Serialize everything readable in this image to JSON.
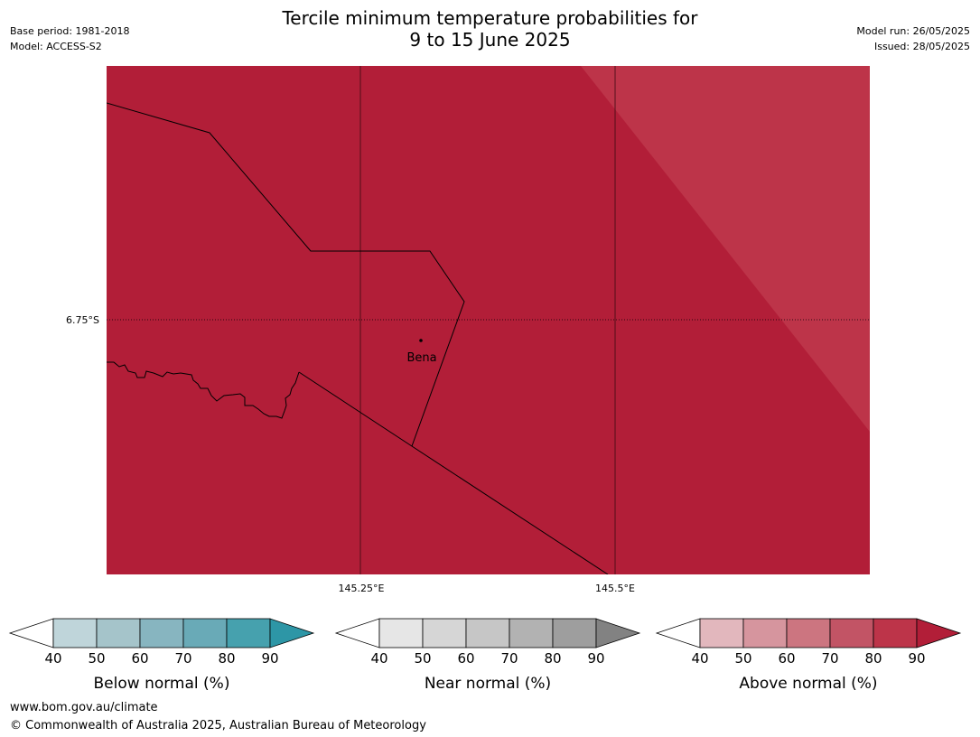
{
  "header": {
    "title_line1": "Tercile minimum temperature probabilities for",
    "title_line2": "9 to 15 June 2025",
    "base_period": "Base period: 1981-2018",
    "model": "Model: ACCESS-S2",
    "model_run": "Model run: 26/05/2025",
    "issued": "Issued: 28/05/2025"
  },
  "map": {
    "fill_color": "#b21e38",
    "light_fill_color": "#bd3449",
    "lat_label": "6.75°S",
    "lon_labels": [
      "145.25°E",
      "145.5°E"
    ],
    "town": "Bena"
  },
  "legends": [
    {
      "label": "Below normal (%)",
      "ticks": [
        "40",
        "50",
        "60",
        "70",
        "80",
        "90"
      ],
      "colors": [
        "#bfd5da",
        "#a5c4ca",
        "#87b5c0",
        "#69aab7",
        "#46a1ae"
      ],
      "over": "#2d96a6"
    },
    {
      "label": "Near normal (%)",
      "ticks": [
        "40",
        "50",
        "60",
        "70",
        "80",
        "90"
      ],
      "colors": [
        "#e6e6e6",
        "#d6d6d6",
        "#c6c6c6",
        "#b2b2b2",
        "#9e9e9e"
      ],
      "over": "#828282"
    },
    {
      "label": "Above normal (%)",
      "ticks": [
        "40",
        "50",
        "60",
        "70",
        "80",
        "90"
      ],
      "colors": [
        "#e2b7bd",
        "#d6959e",
        "#cc7580",
        "#c25465",
        "#bd3449"
      ],
      "over": "#b21e38"
    }
  ],
  "footer": {
    "url": "www.bom.gov.au/climate",
    "copyright": "© Commonwealth of Australia 2025, Australian Bureau of Meteorology"
  }
}
